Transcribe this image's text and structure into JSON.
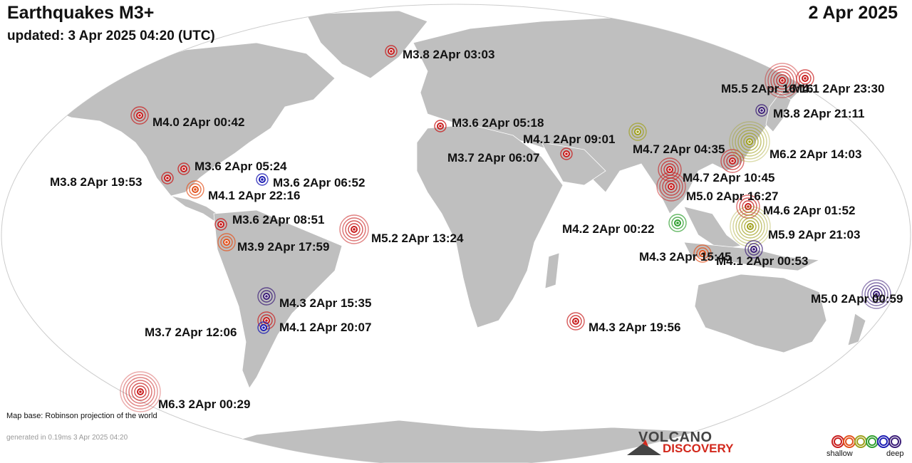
{
  "header": {
    "title": "Earthquakes M3+",
    "updated": "updated:  3 Apr 2025 04:20 (UTC)",
    "date": "2 Apr 2025"
  },
  "footer": {
    "map_base": "Map base: Robinson projection of the world",
    "generated": "generated in 0.19ms  3 Apr 2025 04:20",
    "logo_top": "VOLCANO",
    "logo_bottom": "DISCOVERY"
  },
  "legend": {
    "shallow_label": "shallow",
    "deep_label": "deep",
    "colors": [
      "#c81e1e",
      "#e3531e",
      "#a0a01e",
      "#32a032",
      "#1e1eb4",
      "#3c1e78"
    ]
  },
  "earthquakes": [
    {
      "label": "M3.8  2Apr 03:03",
      "magnitude": 3.8,
      "color": "#c81e1e"
    },
    {
      "label": "M4.0  2Apr 00:42",
      "magnitude": 4.0,
      "color": "#c81e1e"
    },
    {
      "label": "M3.6  2Apr 05:18",
      "magnitude": 3.6,
      "color": "#c81e1e"
    },
    {
      "label": "M4.1  2Apr 09:01",
      "magnitude": 4.1,
      "color": "#a0a01e"
    },
    {
      "label": "M3.7  2Apr 06:07",
      "magnitude": 3.7,
      "color": "#c81e1e"
    },
    {
      "label": "M4.7  2Apr 04:35",
      "magnitude": 4.7,
      "color": "#c81e1e"
    },
    {
      "label": "M4.7  2Apr 10:45",
      "magnitude": 4.7,
      "color": "#c81e1e"
    },
    {
      "label": "M5.0  2Apr 16:27",
      "magnitude": 5.0,
      "color": "#c81e1e"
    },
    {
      "label": "M5.5  2Apr 16:16",
      "magnitude": 5.5,
      "color": "#c81e1e"
    },
    {
      "label": "M4.1  2Apr 23:30",
      "magnitude": 4.1,
      "color": "#c81e1e"
    },
    {
      "label": "M3.8  2Apr 21:11",
      "magnitude": 3.8,
      "color": "#3c1e78"
    },
    {
      "label": "M6.2  2Apr 14:03",
      "magnitude": 6.2,
      "color": "#a0a01e"
    },
    {
      "label": "M4.6  2Apr 01:52",
      "magnitude": 4.6,
      "color": "#c81e1e"
    },
    {
      "label": "M5.9  2Apr 21:03",
      "magnitude": 5.9,
      "color": "#a0a01e"
    },
    {
      "label": "M4.2  2Apr 00:22",
      "magnitude": 4.2,
      "color": "#32a032"
    },
    {
      "label": "M4.3  2Apr 15:45",
      "magnitude": 4.3,
      "color": "#e3531e"
    },
    {
      "label": "M4.1  2Apr 00:53",
      "magnitude": 4.1,
      "color": "#3c1e78"
    },
    {
      "label": "M5.0  2Apr 00:59",
      "magnitude": 5.0,
      "color": "#3c1e78"
    },
    {
      "label": "M3.6  2Apr 05:24",
      "magnitude": 3.6,
      "color": "#c81e1e"
    },
    {
      "label": "M3.8  2Apr 19:53",
      "magnitude": 3.8,
      "color": "#c81e1e"
    },
    {
      "label": "M3.6  2Apr 06:52",
      "magnitude": 3.6,
      "color": "#1e1eb4"
    },
    {
      "label": "M4.1  2Apr 22:16",
      "magnitude": 4.1,
      "color": "#e3531e"
    },
    {
      "label": "M3.6  2Apr 08:51",
      "magnitude": 3.6,
      "color": "#c81e1e"
    },
    {
      "label": "M3.9  2Apr 17:59",
      "magnitude": 3.9,
      "color": "#e3531e"
    },
    {
      "label": "M5.2  2Apr 13:24",
      "magnitude": 5.2,
      "color": "#c81e1e"
    },
    {
      "label": "M4.3  2Apr 15:35",
      "magnitude": 4.3,
      "color": "#3c1e78"
    },
    {
      "label": "M4.1  2Apr 20:07",
      "magnitude": 4.1,
      "color": "#c81e1e"
    },
    {
      "label": "M3.7  2Apr 12:06",
      "magnitude": 3.7,
      "color": "#1e1eb4"
    },
    {
      "label": "M4.3  2Apr 19:56",
      "magnitude": 4.3,
      "color": "#c81e1e"
    },
    {
      "label": "M6.3  2Apr 00:29",
      "magnitude": 6.3,
      "color": "#c81e1e"
    }
  ]
}
